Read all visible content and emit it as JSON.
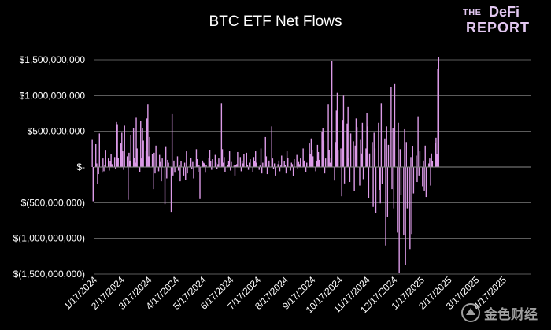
{
  "logo": {
    "line1a": "THE",
    "line1b": "DeFi",
    "line2": "REPORT"
  },
  "watermark": {
    "text": "金色财经"
  },
  "chart_data": {
    "type": "bar",
    "title": "BTC ETF Net Flows",
    "xlabel": "",
    "ylabel": "",
    "ylim": [
      -1500000000,
      1500000000
    ],
    "yticks": [
      1500000000,
      1000000000,
      500000000,
      0,
      -500000000,
      -1000000000,
      -1500000000
    ],
    "ytick_labels": [
      "$1,500,000,000",
      "$1,000,000,000",
      "$500,000,000",
      "$-",
      "$(500,000,000)",
      "$(1,000,000,000)",
      "$(1,500,000,000)"
    ],
    "xtick_labels": [
      "1/17/2024",
      "2/17/2024",
      "3/17/2024",
      "4/17/2024",
      "5/17/2024",
      "6/17/2024",
      "7/17/2024",
      "8/17/2024",
      "9/17/2024",
      "10/17/2024",
      "11/17/2024",
      "12/17/2024",
      "1/17/2025",
      "2/17/2025",
      "3/17/2025",
      "4/17/2025"
    ],
    "grid": "horizontal",
    "bar_color": "#dc9be8",
    "series": [
      {
        "dates_start": "2024-01-11",
        "values": [
          380000000,
          -480000000,
          320000000,
          50000000,
          -240000000,
          -100000000,
          470000000,
          -80000000,
          120000000,
          -60000000,
          30000000,
          230000000,
          120000000,
          -50000000,
          80000000,
          180000000,
          40000000,
          140000000,
          -30000000,
          630000000,
          590000000,
          130000000,
          330000000,
          480000000,
          220000000,
          -40000000,
          580000000,
          150000000,
          -460000000,
          200000000,
          90000000,
          450000000,
          550000000,
          130000000,
          60000000,
          690000000,
          260000000,
          -70000000,
          650000000,
          120000000,
          540000000,
          370000000,
          220000000,
          680000000,
          880000000,
          150000000,
          420000000,
          180000000,
          -310000000,
          200000000,
          -90000000,
          300000000,
          -60000000,
          170000000,
          70000000,
          -200000000,
          120000000,
          -520000000,
          280000000,
          -160000000,
          100000000,
          60000000,
          -630000000,
          740000000,
          -120000000,
          90000000,
          -80000000,
          150000000,
          -50000000,
          30000000,
          -200000000,
          80000000,
          -120000000,
          60000000,
          -180000000,
          220000000,
          -90000000,
          40000000,
          130000000,
          -30000000,
          70000000,
          -160000000,
          250000000,
          110000000,
          -70000000,
          30000000,
          -450000000,
          90000000,
          60000000,
          50000000,
          -80000000,
          30000000,
          130000000,
          240000000,
          80000000,
          -40000000,
          110000000,
          170000000,
          60000000,
          -30000000,
          40000000,
          120000000,
          890000000,
          250000000,
          60000000,
          140000000,
          -70000000,
          30000000,
          80000000,
          220000000,
          -50000000,
          70000000,
          20000000,
          -120000000,
          30000000,
          40000000,
          210000000,
          140000000,
          -60000000,
          90000000,
          50000000,
          180000000,
          200000000,
          30000000,
          -40000000,
          60000000,
          110000000,
          -70000000,
          140000000,
          80000000,
          220000000,
          60000000,
          -40000000,
          20000000,
          260000000,
          -90000000,
          60000000,
          420000000,
          150000000,
          -100000000,
          30000000,
          90000000,
          570000000,
          120000000,
          -30000000,
          50000000,
          -120000000,
          40000000,
          90000000,
          -60000000,
          20000000,
          160000000,
          80000000,
          30000000,
          -90000000,
          220000000,
          130000000,
          -50000000,
          60000000,
          40000000,
          -130000000,
          110000000,
          170000000,
          -20000000,
          70000000,
          40000000,
          120000000,
          260000000,
          90000000,
          30000000,
          -70000000,
          60000000,
          330000000,
          180000000,
          400000000,
          240000000,
          150000000,
          -60000000,
          80000000,
          310000000,
          210000000,
          100000000,
          490000000,
          550000000,
          370000000,
          -90000000,
          120000000,
          880000000,
          240000000,
          60000000,
          130000000,
          1480000000,
          -190000000,
          350000000,
          790000000,
          1040000000,
          230000000,
          260000000,
          -410000000,
          660000000,
          1000000000,
          -230000000,
          610000000,
          840000000,
          130000000,
          -210000000,
          470000000,
          360000000,
          -340000000,
          300000000,
          680000000,
          560000000,
          -260000000,
          380000000,
          190000000,
          620000000,
          -170000000,
          260000000,
          760000000,
          570000000,
          -440000000,
          190000000,
          350000000,
          -560000000,
          480000000,
          260000000,
          -650000000,
          620000000,
          -320000000,
          -510000000,
          890000000,
          -240000000,
          400000000,
          -1100000000,
          570000000,
          -700000000,
          310000000,
          1120000000,
          -310000000,
          540000000,
          -580000000,
          1160000000,
          -920000000,
          620000000,
          -1480000000,
          250000000,
          -390000000,
          -960000000,
          530000000,
          -1370000000,
          350000000,
          -580000000,
          -1150000000,
          140000000,
          -940000000,
          290000000,
          -370000000,
          160000000,
          -210000000,
          710000000,
          -120000000,
          220000000,
          -270000000,
          90000000,
          -330000000,
          300000000,
          -420000000,
          50000000,
          120000000,
          -260000000,
          190000000,
          80000000,
          340000000,
          410000000,
          180000000,
          1370000000,
          1540000000
        ]
      }
    ]
  }
}
